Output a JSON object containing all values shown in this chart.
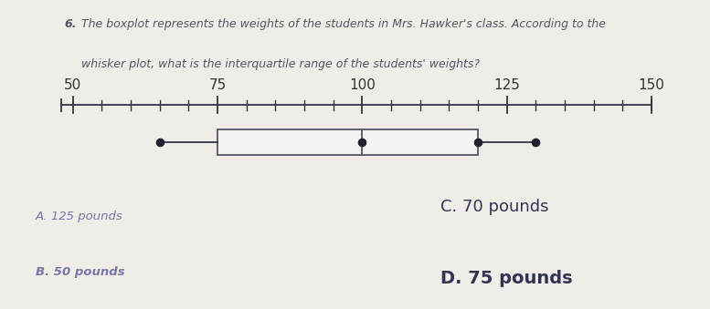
{
  "question_number": "6.",
  "question_line1": "The boxplot represents the weights of the students in Mrs. Hawker's class. According to the",
  "question_line2": "whisker plot, what is the interquartile range of the students' weights?",
  "axis_min": 50,
  "axis_max": 150,
  "axis_ticks": [
    50,
    75,
    100,
    125,
    150
  ],
  "minor_tick_interval": 5,
  "boxplot_min": 65,
  "boxplot_q1": 75,
  "boxplot_median": 100,
  "boxplot_q3": 120,
  "boxplot_max": 130,
  "background_color": "#f0ede8",
  "paper_color": "#f5f3f0",
  "box_color": "#f5f3f0",
  "box_edge_color": "#555566",
  "line_color": "#333344",
  "dot_color": "#222233",
  "text_color_question": "#555566",
  "text_color_ab": "#7777aa",
  "text_color_cd": "#333355",
  "answer_A": "A. 125 pounds",
  "answer_B": "B. 50 pounds",
  "answer_C": "C. 70 pounds",
  "answer_D": "D. 75 pounds"
}
